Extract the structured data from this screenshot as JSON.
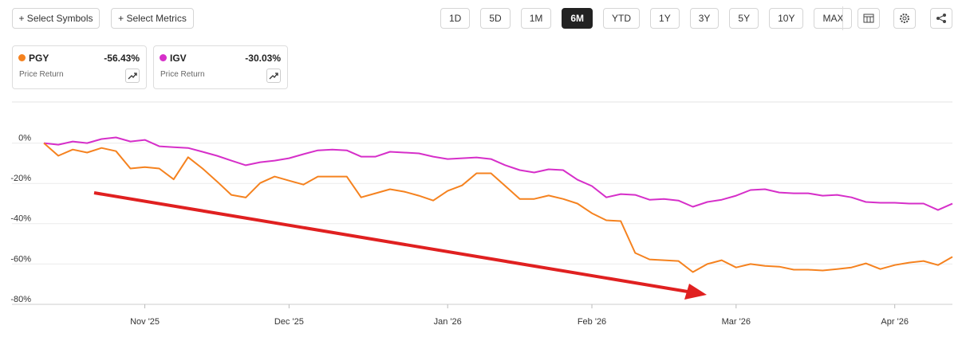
{
  "ui": {
    "symbol_button": "+ Select Symbols",
    "metric_button": "+ Select Metrics",
    "periods": [
      "1D",
      "5D",
      "1M",
      "6M",
      "YTD",
      "1Y",
      "3Y",
      "5Y",
      "10Y",
      "MAX"
    ],
    "active_period": "6M",
    "legend_cards": [
      {
        "change": "-56.43%",
        "metric": "Price Return"
      },
      {
        "change": "-30.03%",
        "metric": "Price Return"
      }
    ]
  },
  "chart_data": {
    "type": "line",
    "categories": [
      null,
      null,
      null,
      null,
      null,
      null,
      null,
      "Nov '25",
      null,
      null,
      null,
      null,
      null,
      null,
      null,
      null,
      null,
      "Dec '25",
      null,
      null,
      null,
      null,
      null,
      null,
      null,
      null,
      null,
      null,
      "Jan '26",
      null,
      null,
      null,
      null,
      null,
      null,
      null,
      null,
      null,
      "Feb '26",
      null,
      null,
      null,
      null,
      null,
      null,
      null,
      null,
      null,
      "Mar '26",
      null,
      null,
      null,
      null,
      null,
      null,
      null,
      null,
      null,
      null,
      "Apr '26",
      null,
      null,
      null,
      null
    ],
    "series": [
      {
        "name": "PGY",
        "color": "#f5821f",
        "values": [
          0,
          -6.3,
          -3.2,
          -4.7,
          -2.4,
          -4,
          -12.6,
          -11.9,
          -12.6,
          -18,
          -7,
          -12.6,
          -19,
          -25.7,
          -27,
          -19.8,
          -16.6,
          -18.6,
          -20.6,
          -16.6,
          -16.6,
          -16.6,
          -26.9,
          -24.9,
          -22.9,
          -24.1,
          -26.1,
          -28.5,
          -23.7,
          -21,
          -15,
          -15,
          -21.3,
          -27.7,
          -27.7,
          -26,
          -27.7,
          -30,
          -34.8,
          -38.3,
          -38.7,
          -54.5,
          -57.7,
          -58.1,
          -58.5,
          -64,
          -60,
          -58.1,
          -61.7,
          -60,
          -60.9,
          -61.3,
          -62.8,
          -62.8,
          -63.2,
          -62.5,
          -61.7,
          -59.7,
          -62.5,
          -60.5,
          -59.3,
          -58.5,
          -60.5,
          -56.43
        ]
      },
      {
        "name": "IGV",
        "color": "#d62fc9",
        "values": [
          0,
          -0.8,
          0.8,
          0,
          2,
          2.8,
          0.8,
          1.6,
          -1.6,
          -2,
          -2.4,
          -4.3,
          -6.3,
          -8.7,
          -11,
          -9.5,
          -8.7,
          -7.5,
          -5.5,
          -3.6,
          -3.2,
          -3.6,
          -6.7,
          -6.7,
          -4.3,
          -4.7,
          -5.1,
          -6.7,
          -7.9,
          -7.5,
          -7.1,
          -7.9,
          -11,
          -13.4,
          -14.6,
          -13,
          -13.4,
          -18.2,
          -21.3,
          -26.9,
          -25.3,
          -25.7,
          -28.1,
          -27.7,
          -28.5,
          -31.6,
          -29.2,
          -28.1,
          -26.1,
          -23.3,
          -22.9,
          -24.5,
          -24.9,
          -24.9,
          -26.1,
          -25.7,
          -26.9,
          -29.2,
          -29.6,
          -29.6,
          -30,
          -30,
          -33.2,
          -30.03
        ]
      }
    ],
    "ylim": [
      -80,
      20
    ],
    "yticks": [
      {
        "value": 0,
        "label": "0%"
      },
      {
        "value": -20,
        "label": "-20%"
      },
      {
        "value": -40,
        "label": "-40%"
      },
      {
        "value": -60,
        "label": "-60%"
      },
      {
        "value": -80,
        "label": "-80%"
      }
    ],
    "grid": true
  }
}
